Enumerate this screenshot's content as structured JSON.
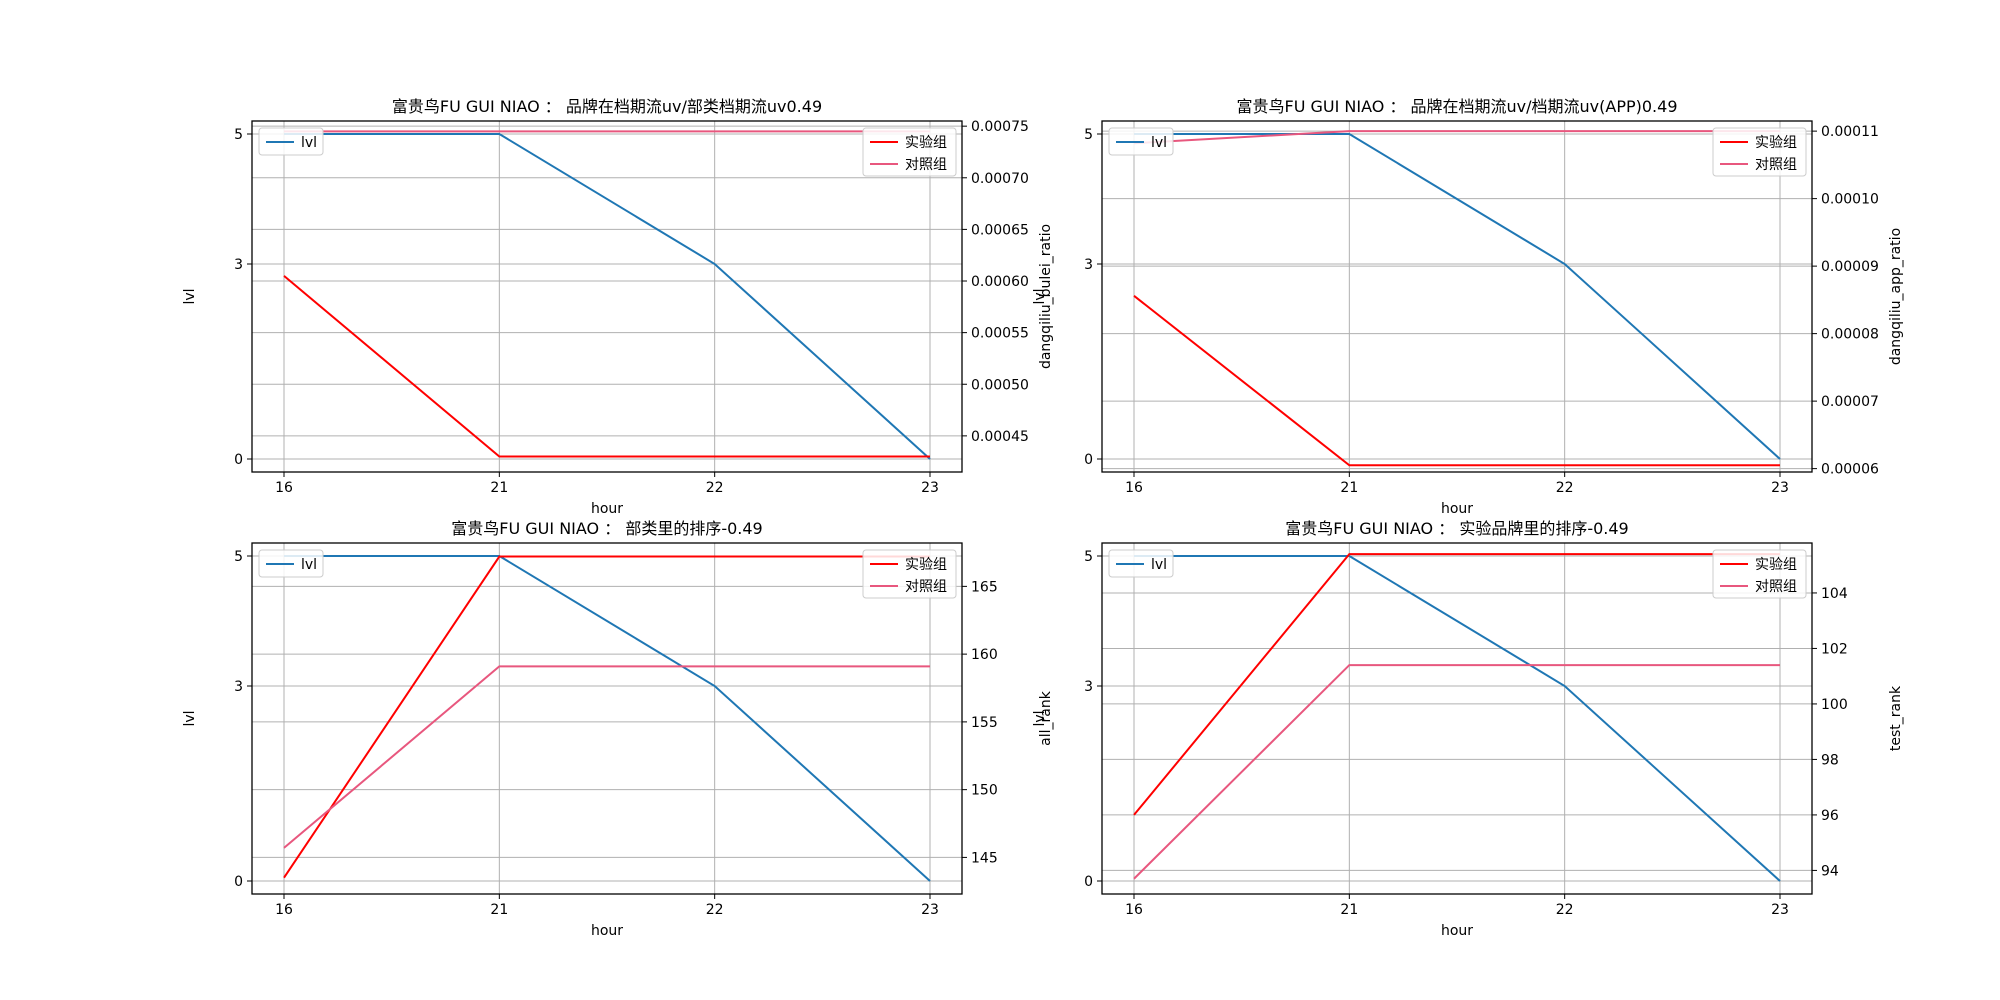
{
  "colors": {
    "lvl": "#1f77b4",
    "test": "#ff0000",
    "control": "#e8577e",
    "grid": "#b0b0b0"
  },
  "chart_data": [
    {
      "type": "line",
      "title": "富贵鸟FU GUI NIAO ： 品牌在档期流uv/部类档期流uv0.49",
      "xlabel": "hour",
      "ylabel": "lvl",
      "y2label": "dangqiliu_bulei_ratio",
      "categories": [
        "16",
        "21",
        "22",
        "23"
      ],
      "ylim": [
        -0.2,
        5.2
      ],
      "yticks": [
        "0",
        "3",
        "5"
      ],
      "y2lim": [
        0.000415,
        0.000755
      ],
      "y2ticks": [
        "0.00045",
        "0.00050",
        "0.00055",
        "0.00060",
        "0.00065",
        "0.00070",
        "0.00075"
      ],
      "grid": true,
      "legend_left": [
        {
          "label": "lvl",
          "series": "lvl"
        }
      ],
      "legend_right": [
        {
          "label": "实验组",
          "series": "test"
        },
        {
          "label": "对照组",
          "series": "control"
        }
      ],
      "series": [
        {
          "name": "lvl",
          "key": "lvl",
          "axis": "left",
          "values": [
            5,
            5,
            3,
            0
          ]
        },
        {
          "name": "实验组",
          "key": "test",
          "axis": "right",
          "values": [
            0.000605,
            0.00043,
            0.00043,
            0.00043
          ]
        },
        {
          "name": "对照组",
          "key": "control",
          "axis": "right",
          "values": [
            0.000745,
            0.000745,
            0.000745,
            0.000745
          ]
        }
      ]
    },
    {
      "type": "line",
      "title": "富贵鸟FU GUI NIAO ： 品牌在档期流uv/档期流uv(APP)0.49",
      "xlabel": "hour",
      "ylabel": "lvl",
      "y2label": "dangqiliu_app_ratio",
      "categories": [
        "16",
        "21",
        "22",
        "23"
      ],
      "ylim": [
        -0.2,
        5.2
      ],
      "yticks": [
        "0",
        "3",
        "5"
      ],
      "y2lim": [
        5.95e-05,
        0.0001115
      ],
      "y2ticks": [
        "0.00006",
        "0.00007",
        "0.00008",
        "0.00009",
        "0.00010",
        "0.00011"
      ],
      "grid": true,
      "legend_left": [
        {
          "label": "lvl",
          "series": "lvl"
        }
      ],
      "legend_right": [
        {
          "label": "实验组",
          "series": "test"
        },
        {
          "label": "对照组",
          "series": "control"
        }
      ],
      "series": [
        {
          "name": "lvl",
          "key": "lvl",
          "axis": "left",
          "values": [
            5,
            5,
            3,
            0
          ]
        },
        {
          "name": "实验组",
          "key": "test",
          "axis": "right",
          "values": [
            8.56e-05,
            6.05e-05,
            6.05e-05,
            6.05e-05
          ]
        },
        {
          "name": "对照组",
          "key": "control",
          "axis": "right",
          "values": [
            0.0001082,
            0.00011,
            0.00011,
            0.00011
          ]
        }
      ]
    },
    {
      "type": "line",
      "title": "富贵鸟FU GUI NIAO ： 部类里的排序-0.49",
      "xlabel": "hour",
      "ylabel": "lvl",
      "y2label": "all_rank",
      "categories": [
        "16",
        "21",
        "22",
        "23"
      ],
      "ylim": [
        -0.2,
        5.2
      ],
      "yticks": [
        "0",
        "3",
        "5"
      ],
      "y2lim": [
        142.3,
        168.2
      ],
      "y2ticks": [
        "145",
        "150",
        "155",
        "160",
        "165"
      ],
      "grid": true,
      "legend_left": [
        {
          "label": "lvl",
          "series": "lvl"
        }
      ],
      "legend_right": [
        {
          "label": "实验组",
          "series": "test"
        },
        {
          "label": "对照组",
          "series": "control"
        }
      ],
      "series": [
        {
          "name": "lvl",
          "key": "lvl",
          "axis": "left",
          "values": [
            5,
            5,
            3,
            0
          ]
        },
        {
          "name": "实验组",
          "key": "test",
          "axis": "right",
          "values": [
            143.5,
            167.2,
            167.2,
            167.2
          ]
        },
        {
          "name": "对照组",
          "key": "control",
          "axis": "right",
          "values": [
            145.7,
            159.1,
            159.1,
            159.1
          ]
        }
      ]
    },
    {
      "type": "line",
      "title": "富贵鸟FU GUI NIAO ： 实验品牌里的排序-0.49",
      "xlabel": "hour",
      "ylabel": "lvl",
      "y2label": "test_rank",
      "categories": [
        "16",
        "21",
        "22",
        "23"
      ],
      "ylim": [
        -0.2,
        5.2
      ],
      "yticks": [
        "0",
        "3",
        "5"
      ],
      "y2lim": [
        93.15,
        105.8
      ],
      "y2ticks": [
        "94",
        "96",
        "98",
        "100",
        "102",
        "104"
      ],
      "grid": true,
      "legend_left": [
        {
          "label": "lvl",
          "series": "lvl"
        }
      ],
      "legend_right": [
        {
          "label": "实验组",
          "series": "test"
        },
        {
          "label": "对照组",
          "series": "control"
        }
      ],
      "series": [
        {
          "name": "lvl",
          "key": "lvl",
          "axis": "left",
          "values": [
            5,
            5,
            3,
            0
          ]
        },
        {
          "name": "实验组",
          "key": "test",
          "axis": "right",
          "values": [
            96,
            105.4,
            105.4,
            105.4
          ]
        },
        {
          "name": "对照组",
          "key": "control",
          "axis": "right",
          "values": [
            93.7,
            101.4,
            101.4,
            101.4
          ]
        }
      ]
    }
  ]
}
